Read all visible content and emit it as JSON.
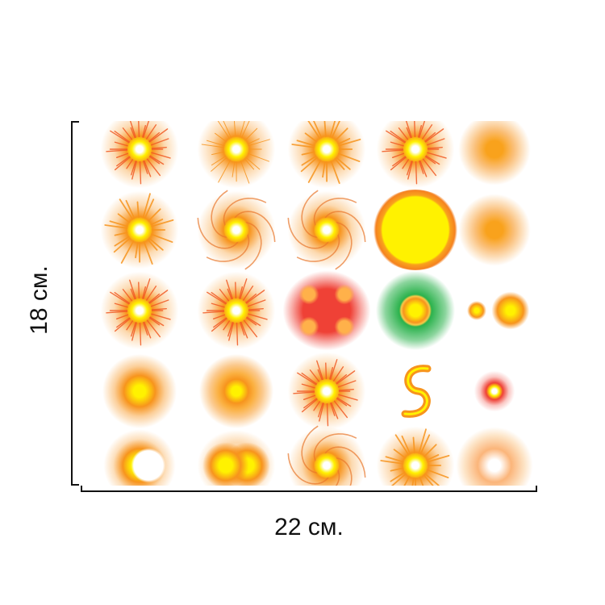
{
  "dimensions": {
    "height_label": "18 см.",
    "width_label": "22 см."
  },
  "colors": {
    "orange": "#f7941d",
    "yellow": "#fff200",
    "red": "#ef4136",
    "green": "#2bb24c",
    "line": "#111111"
  },
  "stickers": [
    {
      "icon": "burst-splash-icon"
    },
    {
      "icon": "thin-star-icon"
    },
    {
      "icon": "spiky-star-icon"
    },
    {
      "icon": "flame-burst-icon"
    },
    {
      "icon": "glow-cloud-icon"
    },
    {
      "icon": "spiky-star-icon"
    },
    {
      "icon": "swirl-sun-icon"
    },
    {
      "icon": "swirl-sun-icon"
    },
    {
      "icon": "ring-sun-icon"
    },
    {
      "icon": "soft-glow-icon"
    },
    {
      "icon": "jagged-burst-icon"
    },
    {
      "icon": "jagged-burst-icon"
    },
    {
      "icon": "red-quad-glow-icon"
    },
    {
      "icon": "green-orb-icon"
    },
    {
      "icon": "fractal-icon"
    },
    {
      "icon": "grid-glow-icon"
    },
    {
      "icon": "flower-glow-icon"
    },
    {
      "icon": "jagged-burst-icon"
    },
    {
      "icon": "s-swirl-icon"
    },
    {
      "icon": "sparkle-dot-icon"
    },
    {
      "icon": "crescent-icon"
    },
    {
      "icon": "double-glow-icon"
    },
    {
      "icon": "swirl-sun-icon"
    },
    {
      "icon": "spiky-star-icon"
    },
    {
      "icon": "pale-glow-icon"
    }
  ]
}
